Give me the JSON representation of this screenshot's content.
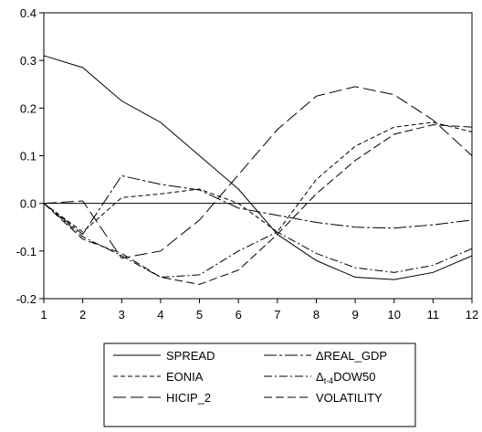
{
  "chart_data": {
    "type": "line",
    "x": [
      1,
      2,
      3,
      4,
      5,
      6,
      7,
      8,
      9,
      10,
      11,
      12
    ],
    "xlim": [
      1,
      12
    ],
    "ylim": [
      -0.2,
      0.4
    ],
    "yticks": [
      "0.4",
      "0.3",
      "0.2",
      "0.1",
      "0.0",
      "-0.1",
      "-0.2"
    ],
    "ytick_values": [
      0.4,
      0.3,
      0.2,
      0.1,
      0.0,
      -0.1,
      -0.2
    ],
    "xticks": [
      "1",
      "2",
      "3",
      "4",
      "5",
      "6",
      "7",
      "8",
      "9",
      "10",
      "11",
      "12"
    ],
    "grid": false,
    "zero_line": true,
    "legend_position": "bottom",
    "series": [
      {
        "name": "SPREAD",
        "dash": "solid",
        "values": [
          0.31,
          0.285,
          0.215,
          0.17,
          0.1,
          0.03,
          -0.065,
          -0.12,
          -0.155,
          -0.16,
          -0.145,
          -0.11
        ]
      },
      {
        "name": "ΔREAL_GDP",
        "dash": "long-dash-dot",
        "values": [
          0.0,
          -0.065,
          0.058,
          0.04,
          0.028,
          -0.01,
          -0.025,
          -0.04,
          -0.05,
          -0.052,
          -0.045,
          -0.035
        ]
      },
      {
        "name": "EONIA",
        "dash": "short-dash",
        "values": [
          0.0,
          -0.06,
          0.012,
          0.02,
          0.03,
          0.0,
          -0.06,
          0.05,
          0.12,
          0.16,
          0.17,
          0.15
        ]
      },
      {
        "name": "Δt-4DOW50",
        "dash": "dash-dot",
        "values": [
          0.0,
          -0.07,
          -0.11,
          -0.155,
          -0.15,
          -0.1,
          -0.06,
          -0.105,
          -0.135,
          -0.145,
          -0.13,
          -0.095
        ]
      },
      {
        "name": "HICIP_2",
        "dash": "long-dash",
        "values": [
          0.0,
          0.005,
          -0.115,
          -0.1,
          -0.035,
          0.06,
          0.155,
          0.225,
          0.245,
          0.228,
          0.175,
          0.1
        ]
      },
      {
        "name": "VOLATILITY",
        "dash": "dash",
        "values": [
          0.0,
          -0.075,
          -0.105,
          -0.155,
          -0.17,
          -0.14,
          -0.065,
          0.02,
          0.09,
          0.145,
          0.165,
          0.16
        ]
      }
    ]
  },
  "legend": [
    {
      "label": "SPREAD",
      "dash": "solid"
    },
    {
      "label": "ΔREAL_GDP",
      "dash": "long-dash-dot"
    },
    {
      "label": "EONIA",
      "dash": "short-dash"
    },
    {
      "label_main": "Δ",
      "label_sub": "t-4",
      "label_rest": "DOW50",
      "dash": "dash-dot"
    },
    {
      "label": "HICIP_2",
      "dash": "long-dash"
    },
    {
      "label": "VOLATILITY",
      "dash": "dash"
    }
  ]
}
